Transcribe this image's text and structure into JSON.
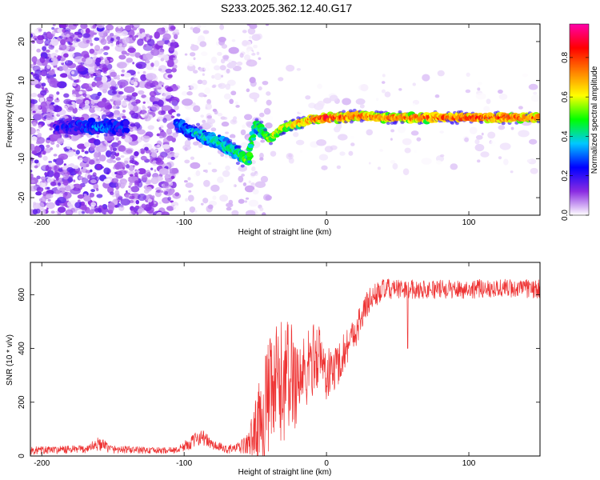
{
  "title": "S233.2025.362.12.40.G17",
  "chart_data": [
    {
      "type": "heatmap",
      "name": "spectrogram",
      "title": "S233.2025.362.12.40.G17",
      "xlabel": "Height of straight line (km)",
      "ylabel": "Frequency (Hz)",
      "xlim": [
        -208,
        150
      ],
      "ylim": [
        -24.5,
        24.5
      ],
      "xticks": [
        -200,
        -100,
        0,
        100
      ],
      "yticks": [
        -20,
        -10,
        0,
        10,
        20
      ],
      "colorbar": {
        "label": "Normalized spectral amplitude",
        "range": [
          0,
          0.97
        ],
        "ticks": [
          0.0,
          0.2,
          0.4,
          0.6,
          0.8
        ],
        "colors": [
          "#ffffff",
          "#8a2be2",
          "#0000ff",
          "#00c8ff",
          "#00ff00",
          "#ffff00",
          "#ff8000",
          "#ff0000",
          "#ff00aa"
        ]
      },
      "ridge": {
        "x": [
          -190,
          -175,
          -160,
          -145,
          -105,
          -95,
          -85,
          -75,
          -65,
          -55,
          -50,
          -45,
          -40,
          -30,
          -20,
          -10,
          0,
          10,
          20,
          40,
          60,
          80,
          100,
          120,
          150
        ],
        "y": [
          -2,
          -1.5,
          -2,
          -2,
          -1,
          -3,
          -4.5,
          -6,
          -8,
          -10.5,
          -1,
          -3,
          -5,
          -2,
          -1,
          0,
          0.5,
          0.5,
          1,
          0.5,
          0.5,
          0.5,
          0.5,
          0.5,
          0.5
        ],
        "amplitude": [
          0.18,
          0.25,
          0.3,
          0.25,
          0.3,
          0.35,
          0.4,
          0.4,
          0.42,
          0.5,
          0.45,
          0.5,
          0.6,
          0.6,
          0.7,
          0.75,
          0.85,
          0.8,
          0.78,
          0.75,
          0.78,
          0.78,
          0.82,
          0.8,
          0.78
        ]
      }
    },
    {
      "type": "line",
      "name": "snr",
      "xlabel": "Height of straight line (km)",
      "ylabel": "SNR (10 * v/v)",
      "xlim": [
        -208,
        150
      ],
      "ylim": [
        0,
        720
      ],
      "xticks": [
        -200,
        -100,
        0,
        100
      ],
      "yticks": [
        0,
        200,
        400,
        600
      ],
      "color": "#ee3333",
      "envelope": {
        "x": [
          -208,
          -170,
          -160,
          -150,
          -120,
          -105,
          -95,
          -88,
          -80,
          -70,
          -62,
          -55,
          -48,
          -42,
          -35,
          -30,
          -25,
          -20,
          -15,
          -10,
          -5,
          0,
          5,
          10,
          15,
          20,
          25,
          30,
          35,
          40,
          50,
          60,
          80,
          100,
          120,
          150
        ],
        "y": [
          20,
          25,
          45,
          25,
          20,
          22,
          50,
          75,
          40,
          25,
          30,
          45,
          120,
          190,
          250,
          280,
          300,
          290,
          300,
          360,
          380,
          300,
          320,
          360,
          420,
          460,
          520,
          580,
          600,
          620,
          620,
          620,
          620,
          620,
          625,
          620
        ],
        "noise": [
          15,
          15,
          25,
          15,
          12,
          12,
          25,
          30,
          20,
          15,
          20,
          40,
          140,
          220,
          250,
          230,
          220,
          180,
          150,
          140,
          120,
          100,
          90,
          80,
          70,
          60,
          60,
          50,
          45,
          40,
          35,
          35,
          35,
          35,
          35,
          35
        ]
      },
      "dropout": {
        "x": 57,
        "y": 400
      }
    }
  ]
}
